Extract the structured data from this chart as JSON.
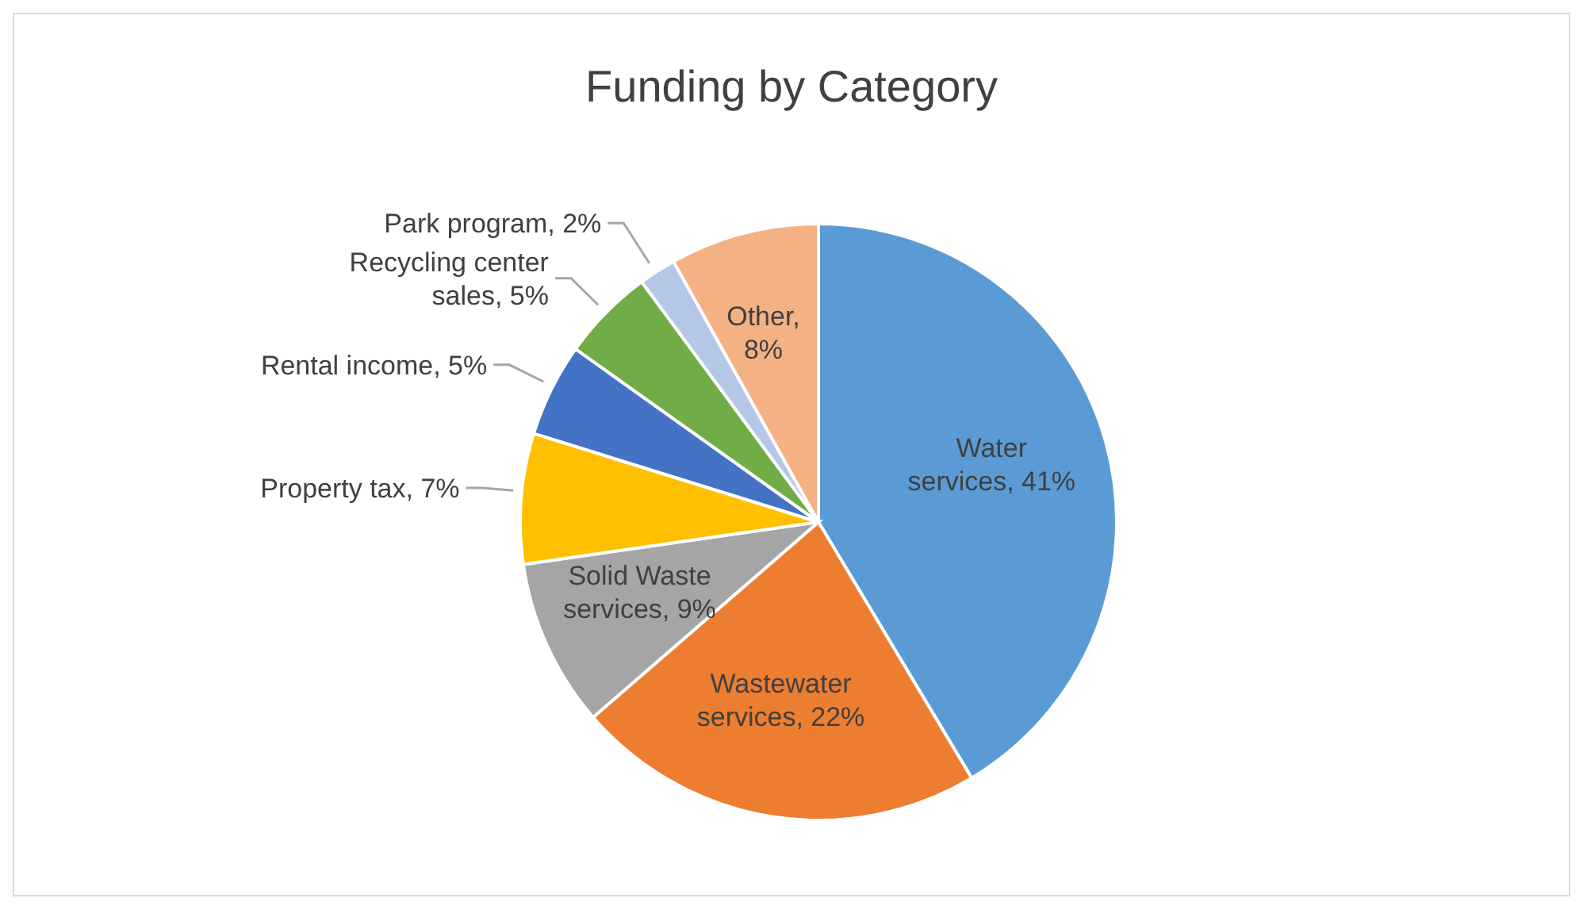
{
  "chart_data": {
    "type": "pie",
    "title": "Funding by Category",
    "categories": [
      "Water services",
      "Wastewater services",
      "Solid Waste services",
      "Property tax",
      "Rental income",
      "Recycling center sales",
      "Park program",
      "Other"
    ],
    "values": [
      41,
      22,
      9,
      7,
      5,
      5,
      2,
      8
    ],
    "value_labels": [
      ", 41%",
      ", 22%",
      ", 9%",
      ", 7%",
      ", 5%",
      ", 5%",
      ", 2%",
      ", 8%"
    ],
    "colors": [
      "#5b9bd5",
      "#ed7d31",
      "#a5a5a5",
      "#ffc000",
      "#4472c4",
      "#70ad47",
      "#b4c7e7",
      "#f4b183"
    ]
  }
}
